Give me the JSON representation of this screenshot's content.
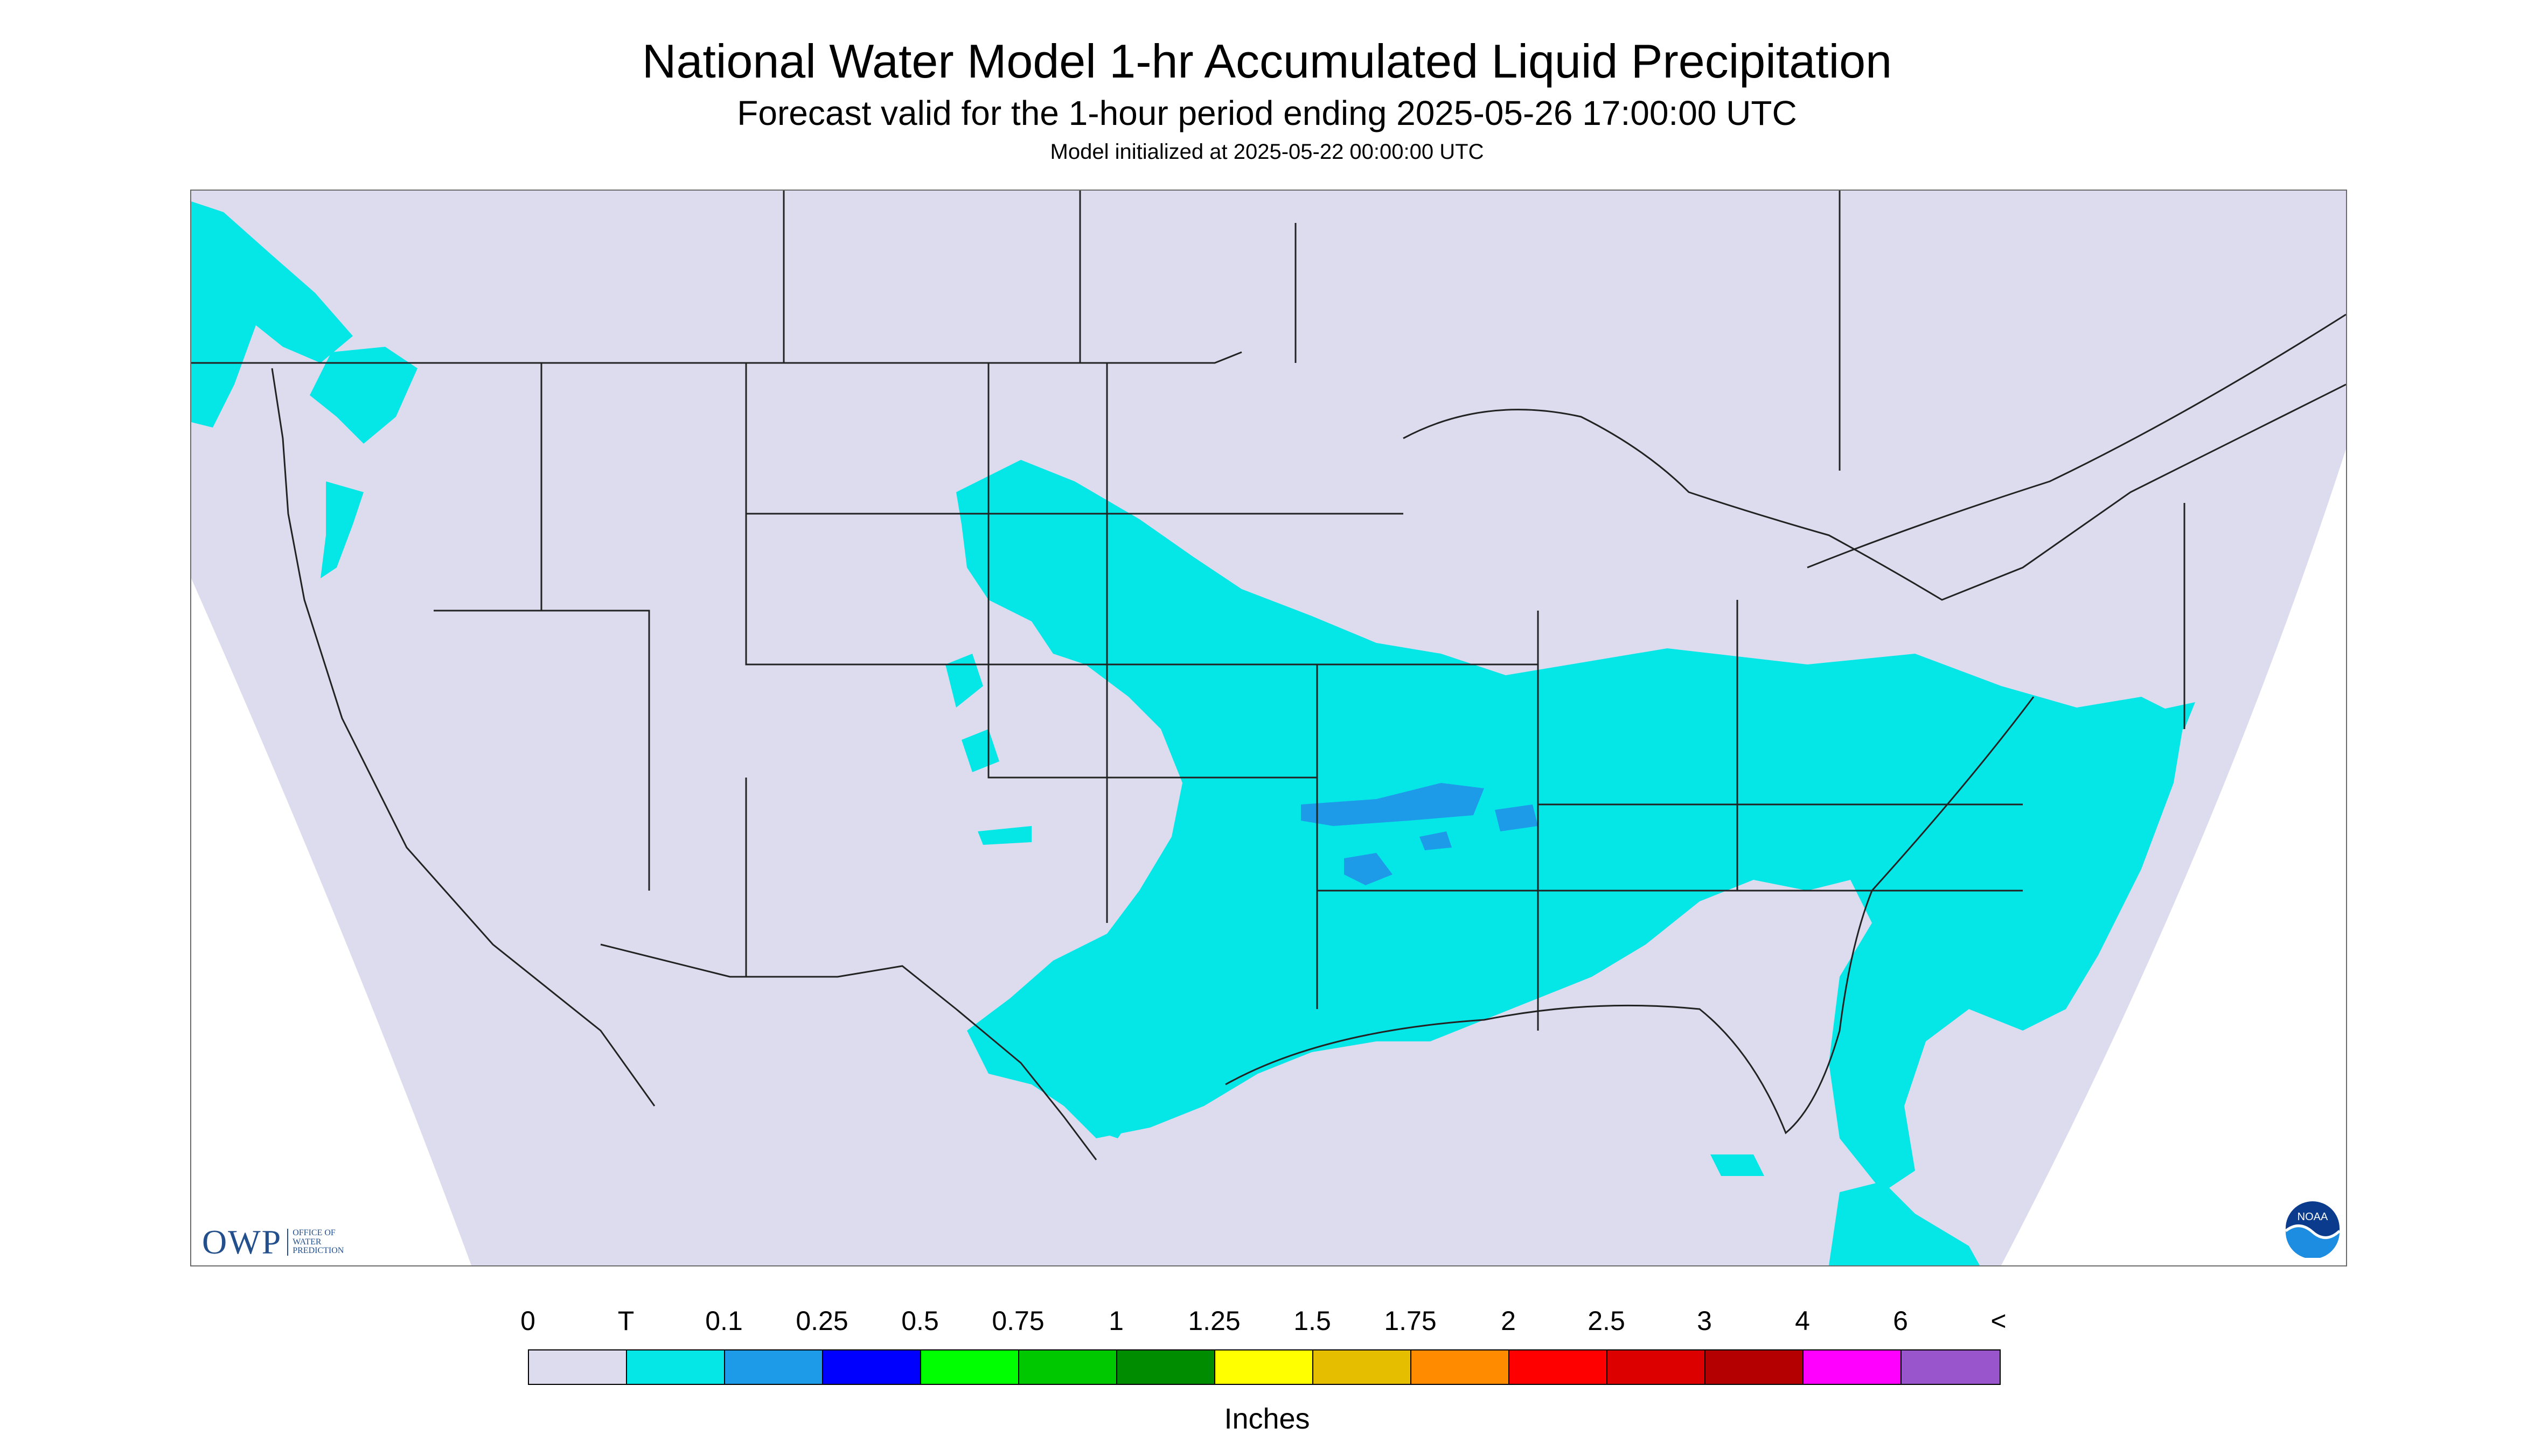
{
  "header": {
    "title": "National Water Model 1-hr Accumulated Liquid Precipitation",
    "subtitle": "Forecast valid for the 1-hour period ending 2025-05-26 17:00:00 UTC",
    "init": "Model initialized at 2025-05-22 00:00:00 UTC"
  },
  "map": {
    "background_color": "#dcdcee",
    "outside_domain_color": "#ffffff",
    "precip_color": "#05e6e6",
    "heavier_precip_color": "#1e9be8",
    "boundary_color": "#222222"
  },
  "logos": {
    "owp_text": "OWP",
    "owp_sub": "OFFICE OF WATER PREDICTION",
    "noaa_text": "NOAA"
  },
  "legend": {
    "labels": [
      "0",
      "T",
      "0.1",
      "0.25",
      "0.5",
      "0.75",
      "1",
      "1.25",
      "1.5",
      "1.75",
      "2",
      "2.5",
      "3",
      "4",
      "6",
      "<"
    ],
    "colors": [
      "#dcdcee",
      "#05e6e6",
      "#1e9be8",
      "#0000ff",
      "#00ff00",
      "#00c800",
      "#008c00",
      "#ffff00",
      "#e6be00",
      "#ff8c00",
      "#ff0000",
      "#dc0000",
      "#b40000",
      "#ff00ff",
      "#9955cc"
    ],
    "units": "Inches"
  }
}
